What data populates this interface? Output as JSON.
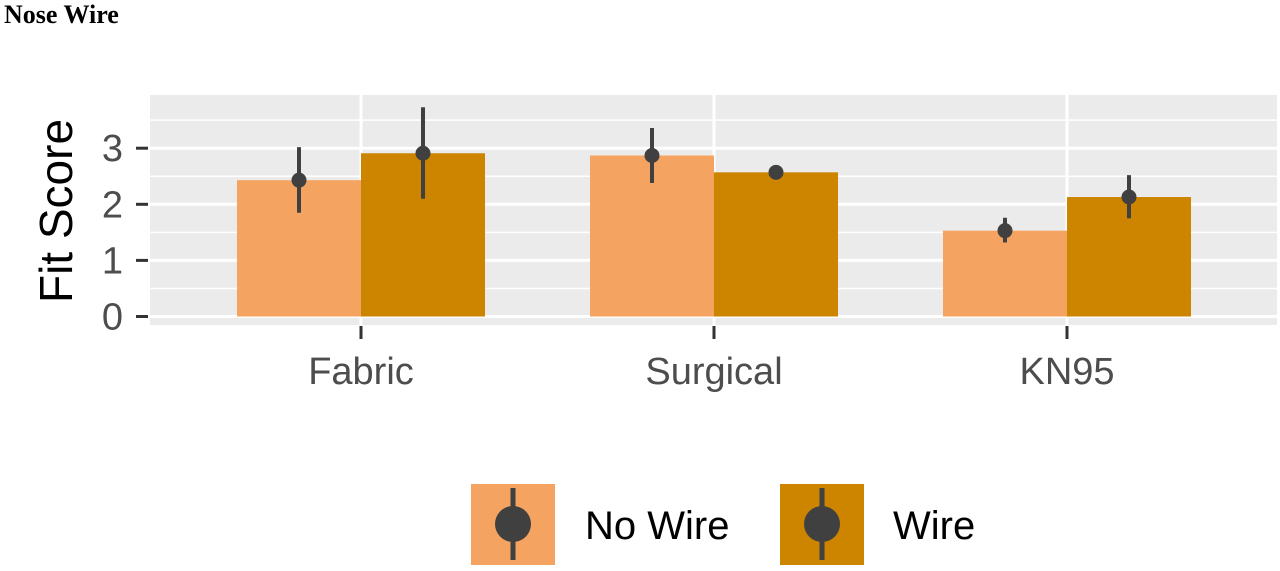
{
  "page": {
    "title": "Nose Wire"
  },
  "chart_data": {
    "type": "bar",
    "title": "",
    "xlabel": "",
    "ylabel": "Fit Score",
    "categories": [
      "Fabric",
      "Surgical",
      "KN95"
    ],
    "ylim": [
      -0.1,
      3.9
    ],
    "yticks": [
      0,
      1,
      2,
      3
    ],
    "grid": true,
    "legend_position": "bottom",
    "series": [
      {
        "name": "No Wire",
        "color": "#F4A460",
        "values": [
          2.43,
          2.87,
          1.53
        ],
        "err_low": [
          1.85,
          2.38,
          1.32
        ],
        "err_high": [
          3.02,
          3.36,
          1.76
        ]
      },
      {
        "name": "Wire",
        "color": "#CD8500",
        "values": [
          2.91,
          2.57,
          2.13
        ],
        "err_low": [
          2.1,
          2.52,
          1.75
        ],
        "err_high": [
          3.73,
          2.62,
          2.52
        ]
      }
    ],
    "colors": {
      "panel": "#EBEBEB",
      "grid": "#FFFFFF",
      "errorbar": "#404040"
    }
  }
}
